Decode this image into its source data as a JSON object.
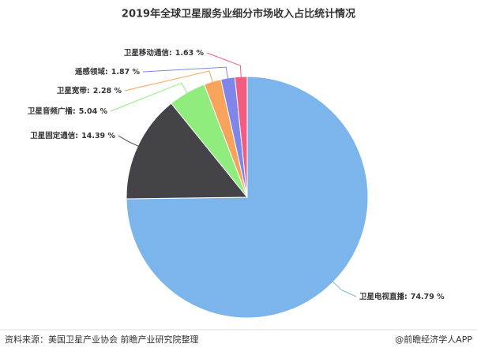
{
  "chart_data": {
    "type": "pie",
    "title": "2019年全球卫星服务业细分市场收入占比统计情况",
    "categories": [
      "卫星电视直播",
      "卫星固定通信",
      "卫星音频广播",
      "卫星宽带",
      "遥感领域",
      "卫星移动通信"
    ],
    "values": [
      74.79,
      14.39,
      5.04,
      2.28,
      1.87,
      1.63
    ],
    "value_labels": [
      "74.79 %",
      "14.39 %",
      "5.04 %",
      "2.28 %",
      "1.87 %",
      "1.63 %"
    ],
    "label_separator": ":",
    "colors": [
      "#7cb5ec",
      "#434348",
      "#90ed7d",
      "#f7a35c",
      "#8085e9",
      "#f15c80"
    ]
  },
  "footer": {
    "source": "资料来源：美国卫星产业协会 前瞻产业研究院整理",
    "brand": "@前瞻经济学人APP"
  }
}
